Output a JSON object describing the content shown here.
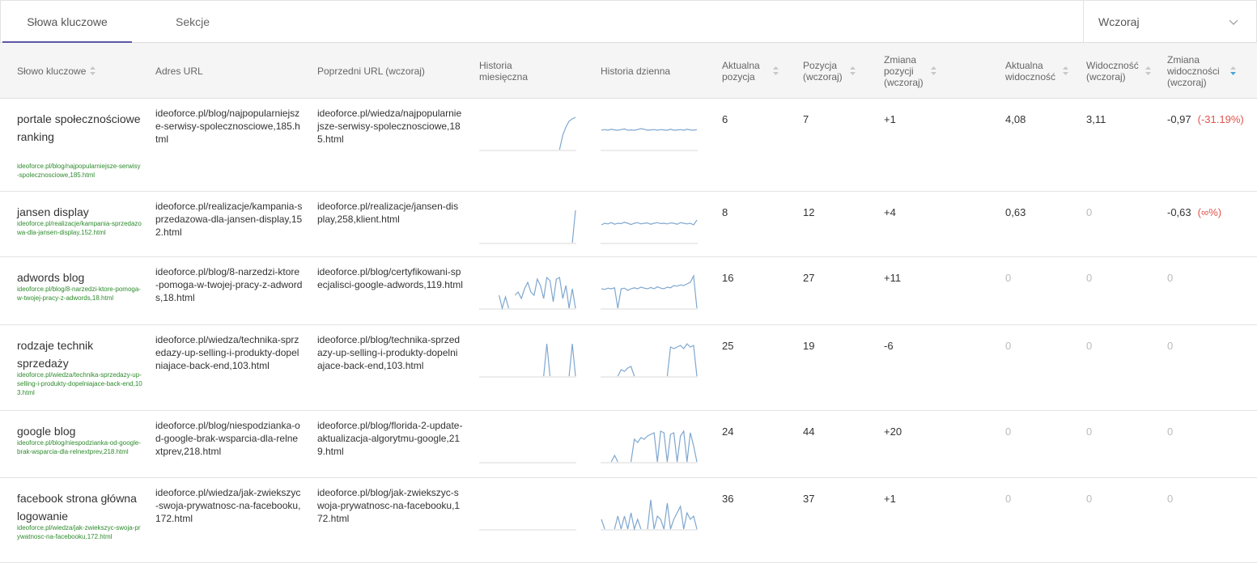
{
  "tabs": {
    "keywords": "Słowa kluczowe",
    "sections": "Sekcje"
  },
  "period": {
    "value": "Wczoraj"
  },
  "headers": {
    "keyword": "Słowo kluczowe",
    "url": "Adres URL",
    "prev_url": "Poprzedni URL (wczoraj)",
    "monthly": "Historia miesięczna",
    "daily": "Historia dzienna",
    "position": "Aktualna pozycja",
    "position_prev": "Pozycja (wczoraj)",
    "position_change": "Zmiana pozycji (wczoraj)",
    "visibility": "Aktualna widoczność",
    "visibility_prev": "Widoczność (wczoraj)",
    "visibility_change": "Zmiana widoczności (wczoraj)"
  },
  "colors": {
    "accent": "#5b57a6",
    "spark": "#7fa7cf",
    "url_green": "#2e8b2e",
    "negative": "#e0544c"
  },
  "rows": [
    {
      "keyword": "portale społecznościowe ranking",
      "keyword_url": "ideoforce.pl/blog/najpopularniejsze-serwisy-spolecznosciowe,185.html",
      "url": "ideoforce.pl/blog/najpopularniejsze-serwisy-spolecznosciowe,185.html",
      "prev_url": "ideoforce.pl/wiedza/najpopularniejsze-serwisy-spolecznosciowe,185.html",
      "position": "6",
      "position_prev": "7",
      "position_change": "+1",
      "visibility": "4,08",
      "visibility_prev": "3,11",
      "visibility_change": "-0,97",
      "visibility_change_pct": "(-31.19%)",
      "monthly": [
        null,
        null,
        null,
        null,
        null,
        null,
        null,
        null,
        null,
        null,
        null,
        null,
        null,
        null,
        null,
        null,
        null,
        null,
        null,
        null,
        null,
        null,
        null,
        null,
        null,
        0.0,
        0.45,
        0.7,
        0.88,
        0.95,
        1.0
      ],
      "daily": [
        0.6,
        0.62,
        0.6,
        0.63,
        0.61,
        0.6,
        0.62,
        0.64,
        0.6,
        0.61,
        0.6,
        0.62,
        0.65,
        0.63,
        0.6,
        0.61,
        0.62,
        0.6,
        0.62,
        0.61,
        0.6,
        0.63,
        0.6,
        0.61,
        0.62,
        0.6,
        0.63,
        0.61,
        0.6,
        0.62
      ]
    },
    {
      "keyword": "jansen display",
      "keyword_url": "ideoforce.pl/realizacje/kampania-sprzedazowa-dla-jansen-display,152.html",
      "url": "ideoforce.pl/realizacje/kampania-sprzedazowa-dla-jansen-display,152.html",
      "prev_url": "ideoforce.pl/realizacje/jansen-display,258,klient.html",
      "position": "8",
      "position_prev": "12",
      "position_change": "+4",
      "visibility": "0,63",
      "visibility_prev": "0",
      "visibility_change": "-0,63",
      "visibility_change_pct": "(∞%)",
      "monthly": [
        null,
        null,
        null,
        null,
        null,
        null,
        null,
        null,
        null,
        null,
        null,
        null,
        null,
        null,
        null,
        null,
        null,
        null,
        null,
        null,
        null,
        null,
        null,
        null,
        null,
        null,
        null,
        null,
        null,
        0.0,
        1.0
      ],
      "daily": [
        0.55,
        0.6,
        0.58,
        0.62,
        0.57,
        0.6,
        0.59,
        0.63,
        0.6,
        0.56,
        0.6,
        0.62,
        0.58,
        0.6,
        0.61,
        0.57,
        0.6,
        0.62,
        0.59,
        0.6,
        0.58,
        0.61,
        0.6,
        0.57,
        0.62,
        0.6,
        0.58,
        0.6,
        0.55,
        0.7
      ]
    },
    {
      "keyword": "adwords blog",
      "keyword_url": "ideoforce.pl/blog/8-narzedzi-ktore-pomoga-w-twojej-pracy-z-adwords,18.html",
      "url": "ideoforce.pl/blog/8-narzedzi-ktore-pomoga-w-twojej-pracy-z-adwords,18.html",
      "prev_url": "ideoforce.pl/blog/certyfikowani-specjalisci-google-adwords,119.html",
      "position": "16",
      "position_prev": "27",
      "position_change": "+11",
      "visibility": "0",
      "visibility_prev": "0",
      "visibility_change": "0",
      "visibility_change_pct": "",
      "monthly": [
        null,
        null,
        null,
        null,
        null,
        null,
        0.4,
        0.0,
        0.35,
        0.0,
        null,
        0.4,
        0.5,
        0.3,
        0.6,
        0.8,
        0.5,
        0.4,
        0.9,
        0.7,
        0.3,
        0.95,
        0.85,
        0.2,
        0.9,
        0.95,
        0.3,
        0.7,
        0.0,
        0.6,
        0.0
      ],
      "daily": [
        0.6,
        0.58,
        0.62,
        0.6,
        0.63,
        0.0,
        0.6,
        0.62,
        0.55,
        0.6,
        0.63,
        0.6,
        0.65,
        0.62,
        0.6,
        0.64,
        0.6,
        0.66,
        0.62,
        0.6,
        0.65,
        0.63,
        0.7,
        0.68,
        0.72,
        0.7,
        0.75,
        0.8,
        1.0,
        0.0
      ]
    },
    {
      "keyword": "rodzaje technik sprzedaży",
      "keyword_url": "ideoforce.pl/wiedza/technika-sprzedazy-up-selling-i-produkty-dopelniajace-back-end,103.html",
      "url": "ideoforce.pl/wiedza/technika-sprzedazy-up-selling-i-produkty-dopelniajace-back-end,103.html",
      "prev_url": "ideoforce.pl/blog/technika-sprzedazy-up-selling-i-produkty-dopelniajace-back-end,103.html",
      "position": "25",
      "position_prev": "19",
      "position_change": "-6",
      "visibility": "0",
      "visibility_prev": "0",
      "visibility_change": "0",
      "visibility_change_pct": "",
      "monthly": [
        null,
        null,
        null,
        null,
        null,
        null,
        null,
        null,
        null,
        null,
        null,
        null,
        null,
        null,
        null,
        null,
        null,
        null,
        null,
        null,
        0.0,
        1.0,
        0.0,
        null,
        null,
        null,
        null,
        null,
        0.0,
        1.0,
        0.0
      ],
      "daily": [
        null,
        null,
        null,
        null,
        null,
        0.0,
        0.2,
        0.15,
        0.25,
        0.3,
        0.0,
        null,
        null,
        null,
        null,
        null,
        null,
        null,
        null,
        null,
        0.0,
        0.9,
        0.85,
        0.9,
        0.95,
        0.85,
        1.0,
        0.9,
        0.95,
        0.0
      ]
    },
    {
      "keyword": "google blog",
      "keyword_url": "ideoforce.pl/blog/niespodzianka-od-google-brak-wsparcia-dla-relnextprev,218.html",
      "url": "ideoforce.pl/blog/niespodzianka-od-google-brak-wsparcia-dla-relnextprev,218.html",
      "prev_url": "ideoforce.pl/blog/florida-2-update-aktualizacja-algorytmu-google,219.html",
      "position": "24",
      "position_prev": "44",
      "position_change": "+20",
      "visibility": "0",
      "visibility_prev": "0",
      "visibility_change": "0",
      "visibility_change_pct": "",
      "monthly": [],
      "daily": [
        null,
        null,
        null,
        0.0,
        0.2,
        0.0,
        null,
        null,
        null,
        0.0,
        0.7,
        0.6,
        0.75,
        0.7,
        0.8,
        0.85,
        0.9,
        0.0,
        0.95,
        0.9,
        0.0,
        0.85,
        0.9,
        0.0,
        0.8,
        0.95,
        0.0,
        0.9,
        0.5,
        0.0
      ]
    },
    {
      "keyword": "facebook strona główna logowanie",
      "keyword_url": "ideoforce.pl/wiedza/jak-zwiekszyc-swoja-prywatnosc-na-facebooku,172.html",
      "url": "ideoforce.pl/wiedza/jak-zwiekszyc-swoja-prywatnosc-na-facebooku,172.html",
      "prev_url": "ideoforce.pl/blog/jak-zwiekszyc-swoja-prywatnosc-na-facebooku,172.html",
      "position": "36",
      "position_prev": "37",
      "position_change": "+1",
      "visibility": "0",
      "visibility_prev": "0",
      "visibility_change": "0",
      "visibility_change_pct": "",
      "monthly": [],
      "daily": [
        0.3,
        0.0,
        null,
        null,
        0.0,
        0.4,
        0.0,
        0.4,
        0.0,
        0.5,
        0.0,
        0.3,
        0.0,
        null,
        0.0,
        0.9,
        0.0,
        0.4,
        0.3,
        0.0,
        0.8,
        0.0,
        0.3,
        0.5,
        0.7,
        0.0,
        0.5,
        0.3,
        0.4,
        0.0
      ]
    }
  ]
}
